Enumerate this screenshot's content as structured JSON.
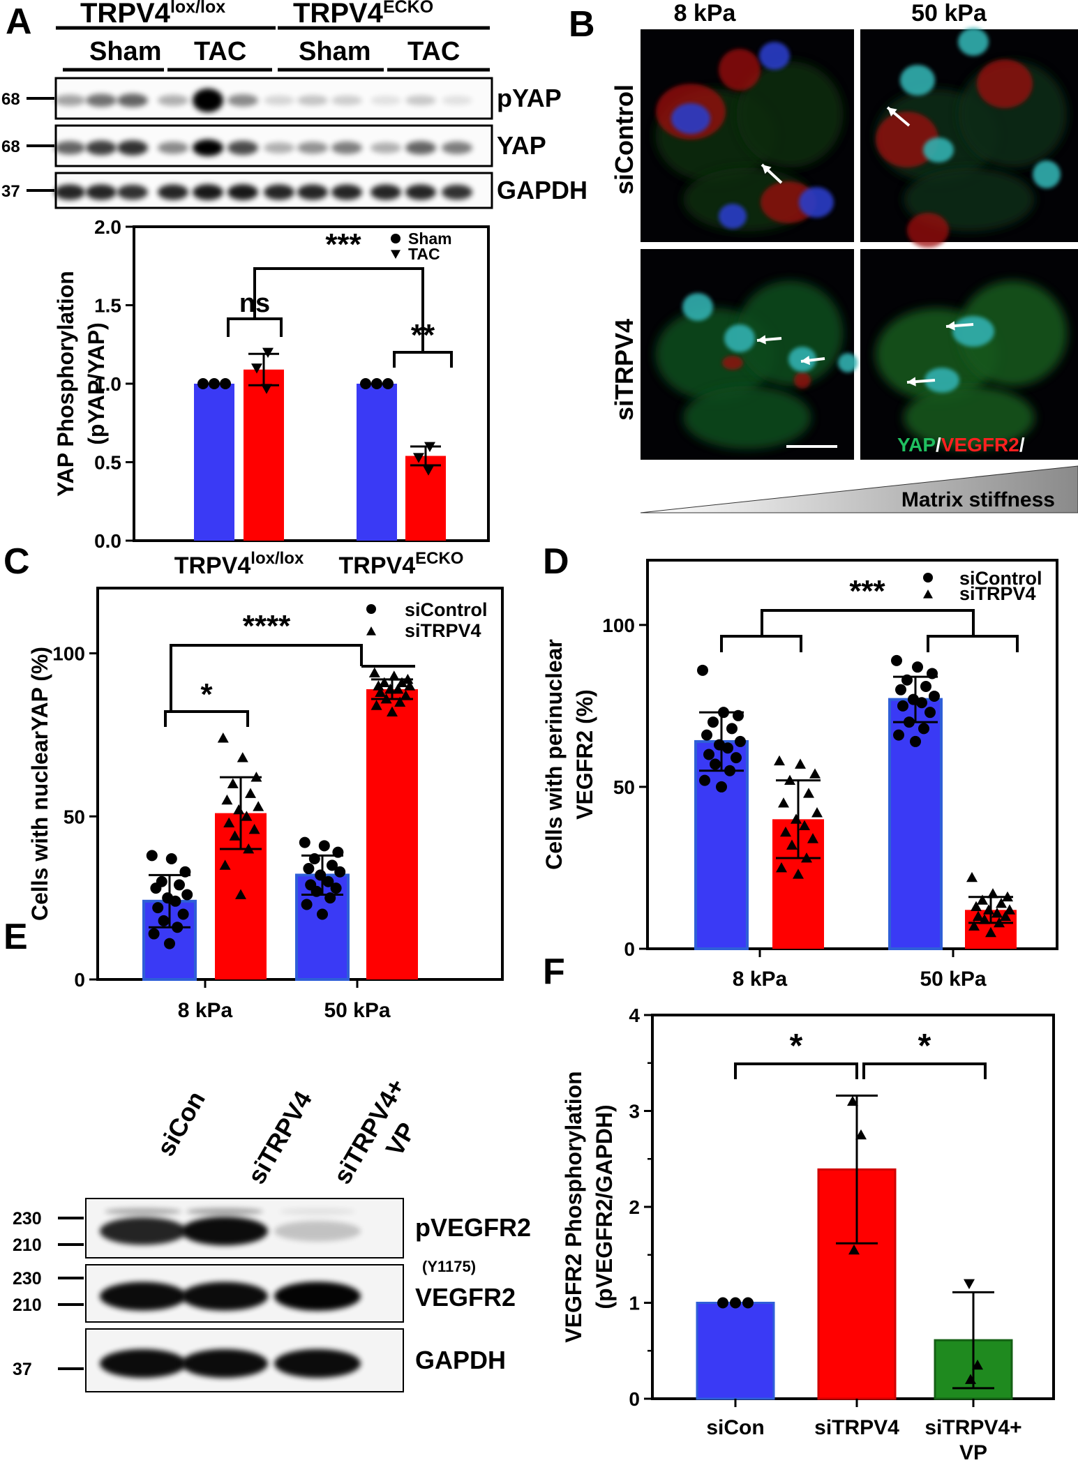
{
  "panels": {
    "A": {
      "letter": "A",
      "headers": {
        "group1": {
          "base": "TRPV4",
          "sup": "lox/lox"
        },
        "group2": {
          "base": "TRPV4",
          "sup": "ECKO"
        },
        "sham1": "Sham",
        "tac1": "TAC",
        "sham2": "Sham",
        "tac2": "TAC"
      },
      "blot_labels": [
        "pYAP",
        "YAP",
        "GAPDH"
      ],
      "mw_markers": [
        "68",
        "68",
        "37"
      ]
    },
    "B": {
      "letter": "B",
      "col_labels": [
        "8 kPa",
        "50 kPa"
      ],
      "row_labels": [
        "siControl",
        "siTRPV4"
      ],
      "stain_legend": {
        "part1": "YAP",
        "sep1": "/",
        "part2": "VEGFR2",
        "sep2": "/"
      },
      "gradient_label": "Matrix stiffness"
    },
    "C": {
      "letter": "C"
    },
    "D": {
      "letter": "D"
    },
    "E": {
      "letter": "E",
      "lane_labels": [
        "siCon",
        "siTRPV4",
        "siTRPV4+",
        "VP"
      ],
      "blot_labels": [
        "pVEGFR2",
        "(Y1175)",
        "VEGFR2",
        "GAPDH"
      ],
      "mw_markers": [
        "230",
        "210",
        "230",
        "210",
        "37"
      ]
    },
    "F": {
      "letter": "F"
    }
  },
  "chart_data": [
    {
      "id": "A",
      "type": "bar",
      "ylabel": [
        "YAP Phosphorylation",
        "(pYAP/YAP)"
      ],
      "ylim": [
        0,
        2.0
      ],
      "yticks": [
        "0.0",
        "0.5",
        "1.0",
        "1.5",
        "2.0"
      ],
      "groups": [
        {
          "base": "TRPV4",
          "sup": "lox/lox"
        },
        {
          "base": "TRPV4",
          "sup": "ECKO"
        }
      ],
      "legend": {
        "position": "top-right",
        "entries": [
          "Sham",
          "TAC"
        ]
      },
      "bars": [
        {
          "group": 0,
          "series": "Sham",
          "value": 1.0,
          "err": 0,
          "color": "#3a3af5",
          "points": [
            1.0,
            1.0,
            1.0
          ],
          "marker": "circle"
        },
        {
          "group": 0,
          "series": "TAC",
          "value": 1.09,
          "err": 0.1,
          "color": "#ff0000",
          "points": [
            1.2,
            1.1,
            0.97
          ],
          "marker": "triangle"
        },
        {
          "group": 1,
          "series": "Sham",
          "value": 1.0,
          "err": 0,
          "color": "#3a3af5",
          "points": [
            1.0,
            1.0,
            1.0
          ],
          "marker": "circle"
        },
        {
          "group": 1,
          "series": "TAC",
          "value": 0.54,
          "err": 0.06,
          "color": "#ff0000",
          "points": [
            0.6,
            0.53,
            0.45
          ],
          "marker": "triangle"
        }
      ],
      "significance": [
        {
          "label": "ns",
          "type": "within",
          "group": 0
        },
        {
          "label": "**",
          "type": "within",
          "group": 1
        },
        {
          "label": "***",
          "type": "between"
        }
      ]
    },
    {
      "id": "C",
      "type": "bar",
      "ylabel": [
        "Cells with nuclearYAP (%)"
      ],
      "ylim": [
        0,
        120
      ],
      "yticks": [
        "0",
        "50",
        "100"
      ],
      "categories": [
        "8 kPa",
        "50 kPa"
      ],
      "legend": {
        "position": "top-right",
        "entries": [
          "siControl",
          "siTRPV4"
        ]
      },
      "bars": [
        {
          "group": 0,
          "series": "siControl",
          "value": 24,
          "err": 8,
          "color": "#3a3af5",
          "marker": "circle",
          "points": [
            38,
            37,
            33,
            30,
            29,
            28,
            26,
            25,
            24,
            22,
            20,
            18,
            16,
            14,
            11
          ]
        },
        {
          "group": 0,
          "series": "siTRPV4",
          "value": 51,
          "err": 11,
          "color": "#ff0000",
          "marker": "triangle",
          "points": [
            74,
            68,
            62,
            60,
            57,
            55,
            53,
            52,
            50,
            48,
            46,
            44,
            40,
            35,
            26
          ]
        },
        {
          "group": 1,
          "series": "siControl",
          "value": 32,
          "err": 6,
          "color": "#3a3af5",
          "marker": "circle",
          "points": [
            42,
            41,
            39,
            37,
            35,
            34,
            33,
            32,
            30,
            29,
            28,
            27,
            25,
            23,
            20
          ]
        },
        {
          "group": 1,
          "series": "siTRPV4",
          "value": 89,
          "err": 3,
          "color": "#ff0000",
          "marker": "triangle",
          "points": [
            94,
            93,
            92,
            91,
            91,
            90,
            90,
            89,
            89,
            88,
            87,
            86,
            85,
            84,
            82
          ]
        }
      ],
      "significance": [
        {
          "label": "*",
          "type": "within",
          "group": 0
        },
        {
          "label": "****",
          "type": "between"
        }
      ]
    },
    {
      "id": "D",
      "type": "bar",
      "ylabel": [
        "Cells with perinuclear",
        "VEGFR2 (%)"
      ],
      "ylim": [
        0,
        120
      ],
      "yticks": [
        "0",
        "50",
        "100"
      ],
      "categories": [
        "8 kPa",
        "50 kPa"
      ],
      "legend": {
        "position": "top-right",
        "entries": [
          "siControl",
          "siTRPV4"
        ]
      },
      "bars": [
        {
          "group": 0,
          "series": "siControl",
          "value": 64,
          "err": 9,
          "color": "#3a3af5",
          "marker": "circle",
          "points": [
            86,
            73,
            72,
            70,
            68,
            66,
            64,
            63,
            62,
            60,
            59,
            57,
            55,
            52,
            50
          ]
        },
        {
          "group": 0,
          "series": "siTRPV4",
          "value": 40,
          "err": 12,
          "color": "#ff0000",
          "marker": "triangle",
          "points": [
            58,
            57,
            54,
            52,
            48,
            45,
            42,
            40,
            38,
            36,
            34,
            32,
            28,
            25,
            23
          ]
        },
        {
          "group": 1,
          "series": "siControl",
          "value": 77,
          "err": 7,
          "color": "#3a3af5",
          "marker": "circle",
          "points": [
            89,
            87,
            85,
            83,
            81,
            80,
            78,
            77,
            76,
            75,
            73,
            70,
            68,
            66,
            64
          ]
        },
        {
          "group": 1,
          "series": "siTRPV4",
          "value": 12,
          "err": 4,
          "color": "#ff0000",
          "marker": "triangle",
          "points": [
            22,
            17,
            16,
            15,
            14,
            13,
            12,
            12,
            11,
            10,
            10,
            9,
            8,
            7,
            5
          ]
        }
      ],
      "significance": [
        {
          "label": "***",
          "type": "between"
        }
      ]
    },
    {
      "id": "F",
      "type": "bar",
      "ylabel": [
        "VEGFR2 Phosphorylation",
        "(pVEGFR2/GAPDH)"
      ],
      "ylim": [
        0,
        4
      ],
      "yticks": [
        "0",
        "1",
        "2",
        "3",
        "4"
      ],
      "categories": [
        [
          "siCon"
        ],
        [
          "siTRPV4"
        ],
        [
          "siTRPV4+",
          "VP"
        ]
      ],
      "bars": [
        {
          "group": 0,
          "value": 1.0,
          "err": 0,
          "color": "#3a3af5",
          "marker": "circle",
          "points": [
            1.0,
            1.0,
            1.0
          ]
        },
        {
          "group": 1,
          "value": 2.39,
          "err": 0.77,
          "color": "#ff0000",
          "marker": "triangle",
          "points": [
            3.1,
            2.75,
            1.55
          ]
        },
        {
          "group": 2,
          "value": 0.61,
          "err": 0.5,
          "color": "#1f8a1f",
          "marker": "triangle",
          "points": [
            1.2,
            0.35,
            0.2
          ]
        }
      ],
      "significance": [
        {
          "label": "*",
          "pair": [
            0,
            1
          ]
        },
        {
          "label": "*",
          "pair": [
            1,
            2
          ]
        }
      ]
    }
  ]
}
